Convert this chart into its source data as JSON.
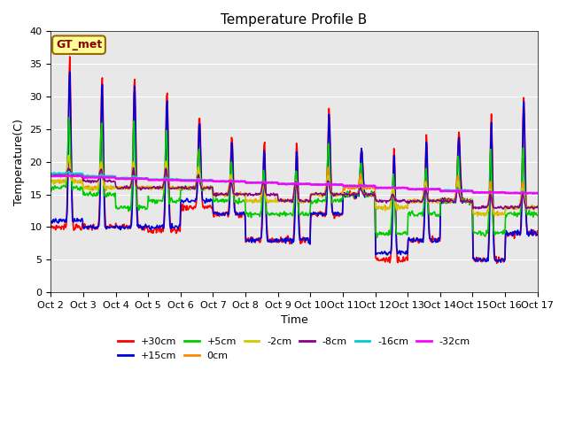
{
  "title": "Temperature Profile B",
  "xlabel": "Time",
  "ylabel": "Temperature(C)",
  "ylim": [
    0,
    40
  ],
  "xlim": [
    0,
    15
  ],
  "xtick_labels": [
    "Oct 2",
    "Oct 3",
    "Oct 4",
    "Oct 5",
    "Oct 6",
    "Oct 7",
    "Oct 8",
    "Oct 9",
    "Oct 10",
    "Oct 11",
    "Oct 12",
    "Oct 13",
    "Oct 14",
    "Oct 15",
    "Oct 16",
    "Oct 17"
  ],
  "bg_color": "#e8e8e8",
  "fig_color": "#ffffff",
  "annotation_text": "GT_met",
  "annotation_bg": "#ffff99",
  "annotation_border": "#996600",
  "series": [
    {
      "label": "+30cm",
      "color": "#ff0000",
      "lw": 1.2
    },
    {
      "label": "+15cm",
      "color": "#0000dd",
      "lw": 1.2
    },
    {
      "label": "+5cm",
      "color": "#00cc00",
      "lw": 1.2
    },
    {
      "label": "0cm",
      "color": "#ff8800",
      "lw": 1.2
    },
    {
      "label": "-2cm",
      "color": "#cccc00",
      "lw": 1.2
    },
    {
      "label": "-8cm",
      "color": "#880088",
      "lw": 1.2
    },
    {
      "label": "-16cm",
      "color": "#00cccc",
      "lw": 1.5
    },
    {
      "label": "-32cm",
      "color": "#ff00ff",
      "lw": 1.8
    }
  ]
}
